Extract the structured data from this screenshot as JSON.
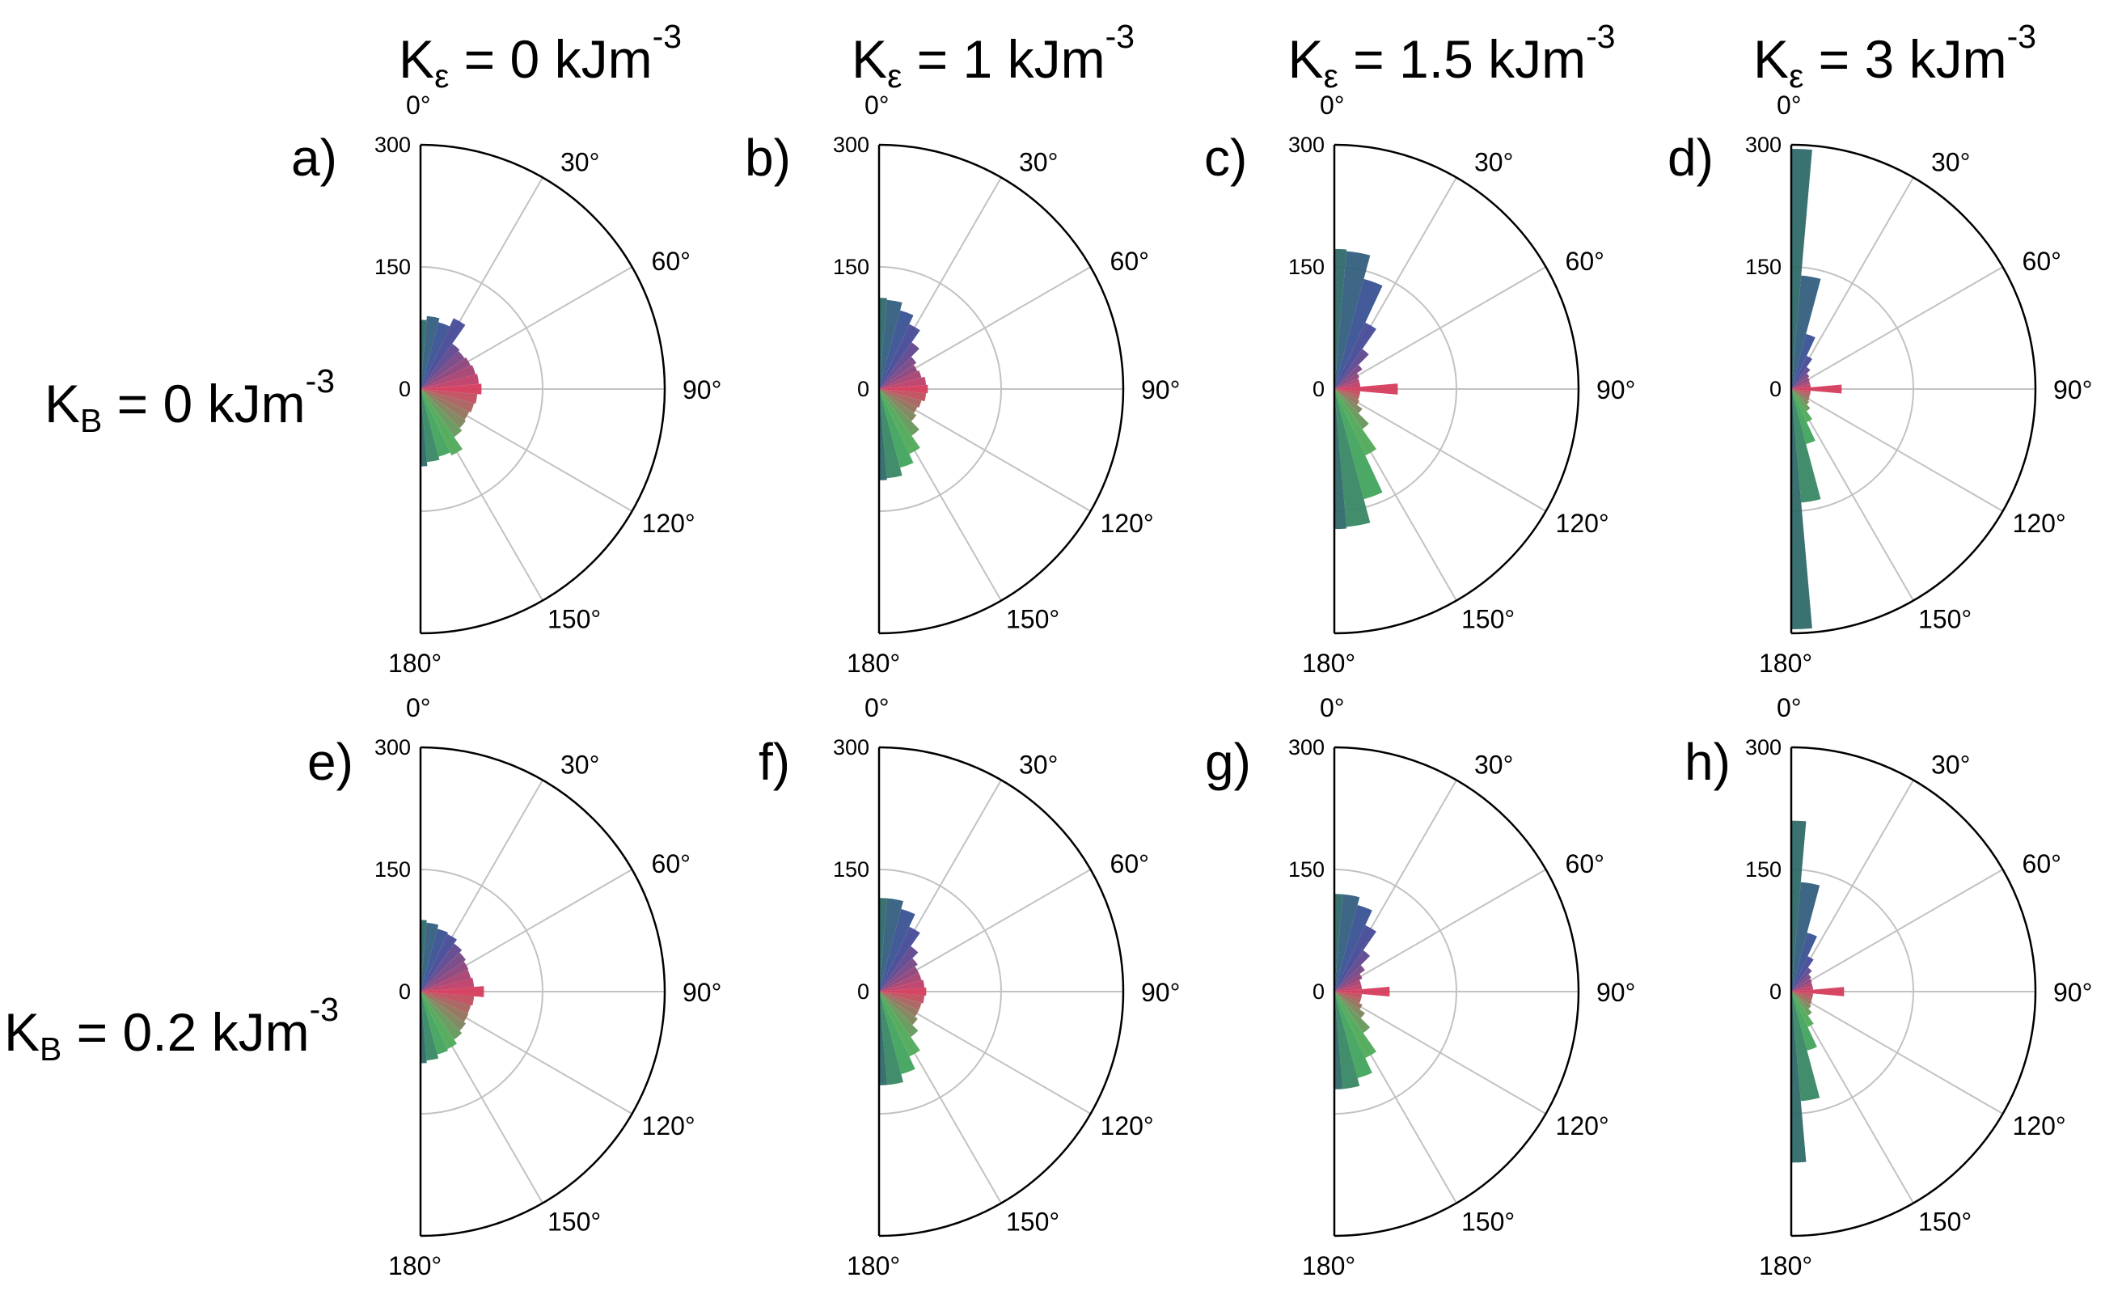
{
  "column_headers": [
    {
      "pre": "K",
      "sub": "ε",
      "mid": " = 0 kJm",
      "sup": "-3"
    },
    {
      "pre": "K",
      "sub": "ε",
      "mid": " = 1 kJm",
      "sup": "-3"
    },
    {
      "pre": "K",
      "sub": "ε",
      "mid": " = 1.5 kJm",
      "sup": "-3"
    },
    {
      "pre": "K",
      "sub": "ε",
      "mid": " = 3 kJm",
      "sup": "-3"
    }
  ],
  "row_labels": [
    {
      "pre": "K",
      "sub": "B",
      "mid": " = 0 kJm",
      "sup": "-3"
    },
    {
      "pre": "K",
      "sub": "B",
      "mid": " = 0.2  kJm",
      "sup": "-3"
    }
  ],
  "colors": {
    "pole": "#2f6a6a",
    "blue": "#3b4c9c",
    "red": "#d63c5e",
    "green": "#45b35a",
    "grid": "#c2c2c2",
    "frame": "#000000"
  },
  "chart_data": [
    {
      "panel": "a)",
      "type": "polar-histogram",
      "theta_ticks": [
        "0°",
        "30°",
        "60°",
        "90°",
        "120°",
        "150°",
        "180°"
      ],
      "r_ticks": [
        "300",
        "150",
        "0"
      ],
      "rlim": [
        0,
        300
      ],
      "thetalim": [
        0,
        180
      ],
      "bins": [
        {
          "theta": 0,
          "r": 85
        },
        {
          "theta": 10,
          "r": 90
        },
        {
          "theta": 20,
          "r": 85
        },
        {
          "theta": 30,
          "r": 96
        },
        {
          "theta": 40,
          "r": 68
        },
        {
          "theta": 50,
          "r": 66
        },
        {
          "theta": 60,
          "r": 68
        },
        {
          "theta": 70,
          "r": 70
        },
        {
          "theta": 80,
          "r": 72
        },
        {
          "theta": 90,
          "r": 75
        },
        {
          "theta": 100,
          "r": 70
        },
        {
          "theta": 110,
          "r": 68
        },
        {
          "theta": 120,
          "r": 66
        },
        {
          "theta": 130,
          "r": 68
        },
        {
          "theta": 140,
          "r": 72
        },
        {
          "theta": 150,
          "r": 90
        },
        {
          "theta": 160,
          "r": 86
        },
        {
          "theta": 170,
          "r": 90
        },
        {
          "theta": 180,
          "r": 95
        }
      ]
    },
    {
      "panel": "b)",
      "type": "polar-histogram",
      "theta_ticks": [
        "0°",
        "30°",
        "60°",
        "90°",
        "120°",
        "150°",
        "180°"
      ],
      "r_ticks": [
        "300",
        "150",
        "0"
      ],
      "rlim": [
        0,
        300
      ],
      "thetalim": [
        0,
        180
      ],
      "bins": [
        {
          "theta": 0,
          "r": 112
        },
        {
          "theta": 10,
          "r": 110
        },
        {
          "theta": 20,
          "r": 100
        },
        {
          "theta": 30,
          "r": 88
        },
        {
          "theta": 40,
          "r": 70
        },
        {
          "theta": 50,
          "r": 56
        },
        {
          "theta": 60,
          "r": 52
        },
        {
          "theta": 70,
          "r": 54
        },
        {
          "theta": 80,
          "r": 58
        },
        {
          "theta": 90,
          "r": 60
        },
        {
          "theta": 100,
          "r": 58
        },
        {
          "theta": 110,
          "r": 54
        },
        {
          "theta": 120,
          "r": 52
        },
        {
          "theta": 130,
          "r": 56
        },
        {
          "theta": 140,
          "r": 70
        },
        {
          "theta": 150,
          "r": 88
        },
        {
          "theta": 160,
          "r": 100
        },
        {
          "theta": 170,
          "r": 110
        },
        {
          "theta": 180,
          "r": 112
        }
      ]
    },
    {
      "panel": "c)",
      "type": "polar-histogram",
      "theta_ticks": [
        "0°",
        "30°",
        "60°",
        "90°",
        "120°",
        "150°",
        "180°"
      ],
      "r_ticks": [
        "300",
        "150",
        "0"
      ],
      "rlim": [
        0,
        300
      ],
      "thetalim": [
        0,
        180
      ],
      "bins": [
        {
          "theta": 0,
          "r": 172
        },
        {
          "theta": 10,
          "r": 170
        },
        {
          "theta": 20,
          "r": 140
        },
        {
          "theta": 30,
          "r": 90
        },
        {
          "theta": 40,
          "r": 60
        },
        {
          "theta": 50,
          "r": 42
        },
        {
          "theta": 60,
          "r": 34
        },
        {
          "theta": 70,
          "r": 32
        },
        {
          "theta": 80,
          "r": 32
        },
        {
          "theta": 90,
          "r": 78
        },
        {
          "theta": 100,
          "r": 32
        },
        {
          "theta": 110,
          "r": 32
        },
        {
          "theta": 120,
          "r": 34
        },
        {
          "theta": 130,
          "r": 42
        },
        {
          "theta": 140,
          "r": 60
        },
        {
          "theta": 150,
          "r": 90
        },
        {
          "theta": 160,
          "r": 140
        },
        {
          "theta": 170,
          "r": 170
        },
        {
          "theta": 180,
          "r": 172
        }
      ]
    },
    {
      "panel": "d)",
      "type": "polar-histogram",
      "theta_ticks": [
        "0°",
        "30°",
        "60°",
        "90°",
        "120°",
        "150°",
        "180°"
      ],
      "r_ticks": [
        "300",
        "150",
        "0"
      ],
      "rlim": [
        0,
        300
      ],
      "thetalim": [
        0,
        180
      ],
      "bins": [
        {
          "theta": 0,
          "r": 295
        },
        {
          "theta": 10,
          "r": 140
        },
        {
          "theta": 20,
          "r": 70
        },
        {
          "theta": 30,
          "r": 45
        },
        {
          "theta": 40,
          "r": 33
        },
        {
          "theta": 50,
          "r": 27
        },
        {
          "theta": 60,
          "r": 25
        },
        {
          "theta": 70,
          "r": 24
        },
        {
          "theta": 80,
          "r": 24
        },
        {
          "theta": 90,
          "r": 62
        },
        {
          "theta": 100,
          "r": 24
        },
        {
          "theta": 110,
          "r": 24
        },
        {
          "theta": 120,
          "r": 25
        },
        {
          "theta": 130,
          "r": 27
        },
        {
          "theta": 140,
          "r": 33
        },
        {
          "theta": 150,
          "r": 45
        },
        {
          "theta": 160,
          "r": 70
        },
        {
          "theta": 170,
          "r": 140
        },
        {
          "theta": 180,
          "r": 295
        }
      ]
    },
    {
      "panel": "e)",
      "type": "polar-histogram",
      "theta_ticks": [
        "0°",
        "30°",
        "60°",
        "90°",
        "120°",
        "150°",
        "180°"
      ],
      "r_ticks": [
        "300",
        "150",
        "0"
      ],
      "rlim": [
        0,
        300
      ],
      "thetalim": [
        0,
        180
      ],
      "bins": [
        {
          "theta": 0,
          "r": 88
        },
        {
          "theta": 10,
          "r": 85
        },
        {
          "theta": 20,
          "r": 80
        },
        {
          "theta": 30,
          "r": 78
        },
        {
          "theta": 40,
          "r": 72
        },
        {
          "theta": 50,
          "r": 68
        },
        {
          "theta": 60,
          "r": 65
        },
        {
          "theta": 70,
          "r": 64
        },
        {
          "theta": 80,
          "r": 66
        },
        {
          "theta": 90,
          "r": 78
        },
        {
          "theta": 100,
          "r": 66
        },
        {
          "theta": 110,
          "r": 64
        },
        {
          "theta": 120,
          "r": 65
        },
        {
          "theta": 130,
          "r": 68
        },
        {
          "theta": 140,
          "r": 72
        },
        {
          "theta": 150,
          "r": 78
        },
        {
          "theta": 160,
          "r": 80
        },
        {
          "theta": 170,
          "r": 85
        },
        {
          "theta": 180,
          "r": 88
        }
      ]
    },
    {
      "panel": "f)",
      "type": "polar-histogram",
      "theta_ticks": [
        "0°",
        "30°",
        "60°",
        "90°",
        "120°",
        "150°",
        "180°"
      ],
      "r_ticks": [
        "300",
        "150",
        "0"
      ],
      "rlim": [
        0,
        300
      ],
      "thetalim": [
        0,
        180
      ],
      "bins": [
        {
          "theta": 0,
          "r": 115
        },
        {
          "theta": 10,
          "r": 115
        },
        {
          "theta": 20,
          "r": 105
        },
        {
          "theta": 30,
          "r": 88
        },
        {
          "theta": 40,
          "r": 68
        },
        {
          "theta": 50,
          "r": 58
        },
        {
          "theta": 60,
          "r": 54
        },
        {
          "theta": 70,
          "r": 54
        },
        {
          "theta": 80,
          "r": 56
        },
        {
          "theta": 90,
          "r": 58
        },
        {
          "theta": 100,
          "r": 56
        },
        {
          "theta": 110,
          "r": 54
        },
        {
          "theta": 120,
          "r": 54
        },
        {
          "theta": 130,
          "r": 58
        },
        {
          "theta": 140,
          "r": 68
        },
        {
          "theta": 150,
          "r": 88
        },
        {
          "theta": 160,
          "r": 105
        },
        {
          "theta": 170,
          "r": 115
        },
        {
          "theta": 180,
          "r": 115
        }
      ]
    },
    {
      "panel": "g)",
      "type": "polar-histogram",
      "theta_ticks": [
        "0°",
        "30°",
        "60°",
        "90°",
        "120°",
        "150°",
        "180°"
      ],
      "r_ticks": [
        "300",
        "150",
        "0"
      ],
      "rlim": [
        0,
        300
      ],
      "thetalim": [
        0,
        180
      ],
      "bins": [
        {
          "theta": 0,
          "r": 120
        },
        {
          "theta": 10,
          "r": 120
        },
        {
          "theta": 20,
          "r": 110
        },
        {
          "theta": 30,
          "r": 90
        },
        {
          "theta": 40,
          "r": 62
        },
        {
          "theta": 50,
          "r": 46
        },
        {
          "theta": 60,
          "r": 38
        },
        {
          "theta": 70,
          "r": 34
        },
        {
          "theta": 80,
          "r": 34
        },
        {
          "theta": 90,
          "r": 68
        },
        {
          "theta": 100,
          "r": 34
        },
        {
          "theta": 110,
          "r": 34
        },
        {
          "theta": 120,
          "r": 38
        },
        {
          "theta": 130,
          "r": 46
        },
        {
          "theta": 140,
          "r": 62
        },
        {
          "theta": 150,
          "r": 90
        },
        {
          "theta": 160,
          "r": 110
        },
        {
          "theta": 170,
          "r": 120
        },
        {
          "theta": 180,
          "r": 120
        }
      ]
    },
    {
      "panel": "h)",
      "type": "polar-histogram",
      "theta_ticks": [
        "0°",
        "30°",
        "60°",
        "90°",
        "120°",
        "150°",
        "180°"
      ],
      "r_ticks": [
        "300",
        "150",
        "0"
      ],
      "rlim": [
        0,
        300
      ],
      "thetalim": [
        0,
        180
      ],
      "bins": [
        {
          "theta": 0,
          "r": 210
        },
        {
          "theta": 10,
          "r": 135
        },
        {
          "theta": 20,
          "r": 75
        },
        {
          "theta": 30,
          "r": 48
        },
        {
          "theta": 40,
          "r": 36
        },
        {
          "theta": 50,
          "r": 30
        },
        {
          "theta": 60,
          "r": 28
        },
        {
          "theta": 70,
          "r": 27
        },
        {
          "theta": 80,
          "r": 27
        },
        {
          "theta": 90,
          "r": 65
        },
        {
          "theta": 100,
          "r": 27
        },
        {
          "theta": 110,
          "r": 27
        },
        {
          "theta": 120,
          "r": 28
        },
        {
          "theta": 130,
          "r": 30
        },
        {
          "theta": 140,
          "r": 36
        },
        {
          "theta": 150,
          "r": 48
        },
        {
          "theta": 160,
          "r": 75
        },
        {
          "theta": 170,
          "r": 135
        },
        {
          "theta": 180,
          "r": 210
        }
      ]
    }
  ]
}
